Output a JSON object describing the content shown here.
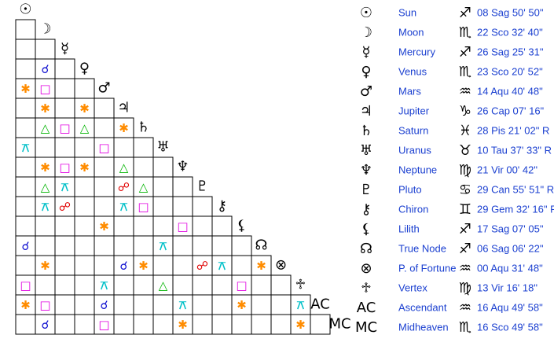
{
  "planets": [
    {
      "glyph": "☉",
      "name": "Sun",
      "sign": "♐",
      "position": "08 Sag 50' 50\""
    },
    {
      "glyph": "☽",
      "name": "Moon",
      "sign": "♏",
      "position": "22 Sco 32' 40\""
    },
    {
      "glyph": "☿",
      "name": "Mercury",
      "sign": "♐",
      "position": "26 Sag 25' 31\""
    },
    {
      "glyph": "♀",
      "name": "Venus",
      "sign": "♏",
      "position": "23 Sco 20' 52\""
    },
    {
      "glyph": "♂",
      "name": "Mars",
      "sign": "♒",
      "position": "14 Aqu 40' 48\""
    },
    {
      "glyph": "♃",
      "name": "Jupiter",
      "sign": "♑",
      "position": "26 Cap 07' 16\""
    },
    {
      "glyph": "♄",
      "name": "Saturn",
      "sign": "♓",
      "position": "28 Pis 21' 02\" R"
    },
    {
      "glyph": "♅",
      "name": "Uranus",
      "sign": "♉",
      "position": "10 Tau 37' 33\" R"
    },
    {
      "glyph": "♆",
      "name": "Neptune",
      "sign": "♍",
      "position": "21 Vir 00' 42\""
    },
    {
      "glyph": "♇",
      "name": "Pluto",
      "sign": "♋",
      "position": "29 Can 55' 51\" R"
    },
    {
      "glyph": "⚷",
      "name": "Chiron",
      "sign": "♊",
      "position": "29 Gem 32' 16\" R"
    },
    {
      "glyph": "⚸",
      "name": "Lilith",
      "sign": "♐",
      "position": "17 Sag 07' 05\""
    },
    {
      "glyph": "☊",
      "name": "True Node",
      "sign": "♐",
      "position": "06 Sag 06' 22\""
    },
    {
      "glyph": "⊗",
      "name": "P. of Fortune",
      "sign": "♒",
      "position": "00 Aqu 31' 48\""
    },
    {
      "glyph": "♱",
      "name": "Vertex",
      "sign": "♍",
      "position": "13 Vir 16' 18\""
    },
    {
      "glyph": "AC",
      "name": "Ascendant",
      "sign": "♒",
      "position": "16 Aqu 49' 58\""
    },
    {
      "glyph": "MC",
      "name": "Midheaven",
      "sign": "♏",
      "position": "16 Sco 49' 58\""
    }
  ],
  "aspect_colors": {
    "☌": "#1010d0",
    "□": "#e000e0",
    "✱": "#ff8c00",
    "△": "#00b400",
    "☍": "#e00000",
    "⚻": "#00c0c8"
  },
  "grid": [
    [],
    [
      null
    ],
    [
      null,
      null
    ],
    [
      null,
      "☌",
      null
    ],
    [
      "✱",
      "□",
      null,
      null
    ],
    [
      null,
      "✱",
      null,
      "✱",
      null
    ],
    [
      null,
      "△",
      "□",
      "△",
      null,
      "✱"
    ],
    [
      "⚻",
      null,
      null,
      null,
      "□",
      null,
      null
    ],
    [
      null,
      "✱",
      "□",
      "✱",
      null,
      "△",
      null,
      null
    ],
    [
      null,
      "△",
      "⚻",
      null,
      null,
      "☍",
      "△",
      null,
      null
    ],
    [
      null,
      "⚻",
      "☍",
      null,
      null,
      "⚻",
      "□",
      null,
      null,
      null
    ],
    [
      null,
      null,
      null,
      null,
      "✱",
      null,
      null,
      null,
      "□",
      null,
      null
    ],
    [
      "☌",
      null,
      null,
      null,
      null,
      null,
      null,
      "⚻",
      null,
      null,
      null,
      null
    ],
    [
      null,
      "✱",
      null,
      null,
      null,
      "☌",
      "✱",
      null,
      null,
      "☍",
      "⚻",
      null,
      "✱"
    ],
    [
      "□",
      null,
      null,
      null,
      "⚻",
      null,
      null,
      "△",
      null,
      null,
      null,
      "□",
      null,
      null
    ],
    [
      "✱",
      "□",
      null,
      null,
      "☌",
      null,
      null,
      null,
      "⚻",
      null,
      null,
      "✱",
      null,
      null,
      "⚻"
    ],
    [
      null,
      "☌",
      null,
      null,
      "□",
      null,
      null,
      null,
      "✱",
      null,
      null,
      null,
      null,
      null,
      "✱",
      null
    ]
  ]
}
